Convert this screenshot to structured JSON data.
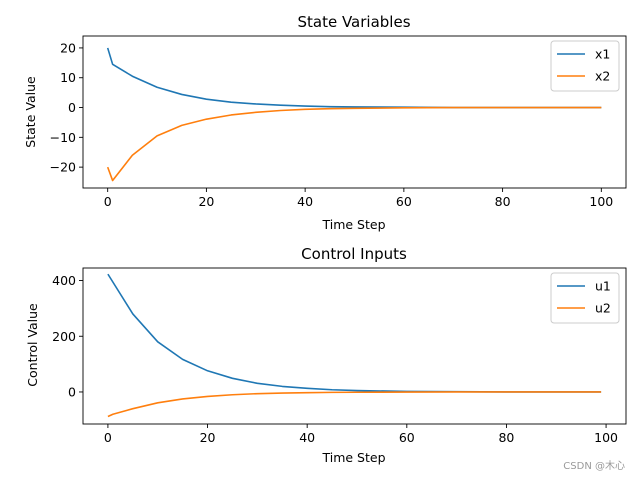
{
  "watermark": "CSDN @木心",
  "chart_data": [
    {
      "type": "line",
      "title": "State Variables",
      "xlabel": "Time Step",
      "ylabel": "State Value",
      "xlim": [
        -5,
        105
      ],
      "ylim": [
        -27,
        24
      ],
      "xticks": [
        0,
        20,
        40,
        60,
        80,
        100
      ],
      "yticks": [
        -20,
        -10,
        0,
        10,
        20
      ],
      "legend": "top-right",
      "grid": false,
      "series": [
        {
          "name": "x1",
          "color": "#1f77b4",
          "x": [
            0,
            1,
            5,
            10,
            15,
            20,
            25,
            30,
            35,
            40,
            45,
            50,
            60,
            70,
            80,
            90,
            100
          ],
          "y": [
            20.0,
            14.5,
            10.5,
            6.8,
            4.4,
            2.8,
            1.8,
            1.2,
            0.8,
            0.5,
            0.3,
            0.2,
            0.1,
            0.0,
            0.0,
            0.0,
            0.0
          ]
        },
        {
          "name": "x2",
          "color": "#ff7f0e",
          "x": [
            0,
            1,
            5,
            10,
            15,
            20,
            25,
            30,
            35,
            40,
            45,
            50,
            60,
            70,
            80,
            90,
            100
          ],
          "y": [
            -20.0,
            -24.5,
            -16.0,
            -9.5,
            -6.0,
            -3.9,
            -2.5,
            -1.6,
            -1.0,
            -0.6,
            -0.4,
            -0.25,
            -0.1,
            0.0,
            0.0,
            0.0,
            0.0
          ]
        }
      ]
    },
    {
      "type": "line",
      "title": "Control Inputs",
      "xlabel": "Time Step",
      "ylabel": "Control Value",
      "xlim": [
        -5,
        104
      ],
      "ylim": [
        -115,
        445
      ],
      "xticks": [
        0,
        20,
        40,
        60,
        80,
        100
      ],
      "yticks": [
        0,
        200,
        400
      ],
      "legend": "top-right",
      "grid": false,
      "series": [
        {
          "name": "u1",
          "color": "#1f77b4",
          "x": [
            0,
            5,
            10,
            15,
            20,
            25,
            30,
            35,
            40,
            45,
            50,
            60,
            70,
            80,
            90,
            99
          ],
          "y": [
            423,
            280,
            180,
            117,
            76,
            49,
            31,
            20,
            13,
            8,
            5,
            2,
            1,
            0,
            0,
            0
          ]
        },
        {
          "name": "u2",
          "color": "#ff7f0e",
          "x": [
            0,
            1,
            5,
            10,
            15,
            20,
            25,
            30,
            35,
            40,
            45,
            50,
            60,
            70,
            80,
            90,
            99
          ],
          "y": [
            -88,
            -80,
            -60,
            -39,
            -25,
            -16,
            -10,
            -6,
            -4,
            -2.5,
            -1.5,
            -1,
            -0.5,
            0,
            0,
            0,
            0
          ]
        }
      ]
    }
  ]
}
